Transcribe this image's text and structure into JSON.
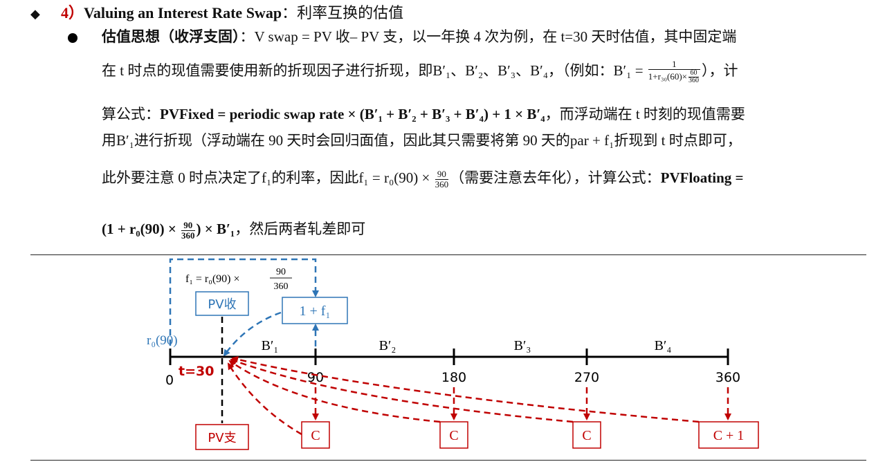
{
  "heading": {
    "bullet": "◆",
    "number": "4）",
    "title_en": "Valuing an Interest Rate Swap",
    "title_cn": "：利率互换的估值"
  },
  "para": {
    "line1_bold": "估值思想（收浮支固）",
    "line1_rest": "：V swap = PV 收– PV 支，以一年换 4 次为例，在 t=30 天时估值，其中固定端",
    "line2_text": "在 t 时点的现值需要使用新的折现因子进行折现，即B′₁、B′₂、B′₃、B′₄，（例如：B′₁ =",
    "line2_frac_num": "1",
    "line2_frac_den_pre": "1+r₃₀(60)×",
    "line2_frac_den_num": "60",
    "line2_frac_den_den": "360",
    "line2_end": "），计",
    "line3_pre": "算公式：",
    "line3_formula": "PVFixed = periodic swap rate × (B′₁ + B′₂ + B′₃ + B′₄) + 1 × B′₄",
    "line3_post": "，而浮动端在 t 时刻的现值需要",
    "line4": "用B′₁进行折现（浮动端在 90 天时会回归面值，因此其只需要将第 90 天的par + f₁折现到 t 时点即可，",
    "line5_pre": "此外要注意 0 时点决定了f₁的利率，因此f₁ = r₀(90) ×",
    "line5_frac_num": "90",
    "line5_frac_den": "360",
    "line5_post": "（需要注意去年化），计算公式：",
    "line5_bold": "PVFloating =",
    "line6_pre": "(1 + r₀(90) ×",
    "line6_frac_num": "90",
    "line6_frac_den": "360",
    "line6_mid": ") × B′₁",
    "line6_post": "，然后两者轧差即可"
  },
  "diagram": {
    "f1_formula_pre": "f₁ = r₀(90) ×",
    "f1_formula_num": "90",
    "f1_formula_den": "360",
    "pv_receive": "PV收",
    "pv_pay": "PV支",
    "one_plus_f1": "1 + f₁",
    "r0_label": "r₀(90)",
    "t_label": "t=30",
    "ticks": [
      "0",
      "90",
      "180",
      "270",
      "360"
    ],
    "periods": [
      "B′₁",
      "B′₂",
      "B′₃",
      "B′₄"
    ],
    "coupons": [
      "C",
      "C",
      "C",
      "C + 1"
    ],
    "colors": {
      "blue": "#2e75b6",
      "red": "#c00000",
      "axis": "#000000"
    }
  }
}
